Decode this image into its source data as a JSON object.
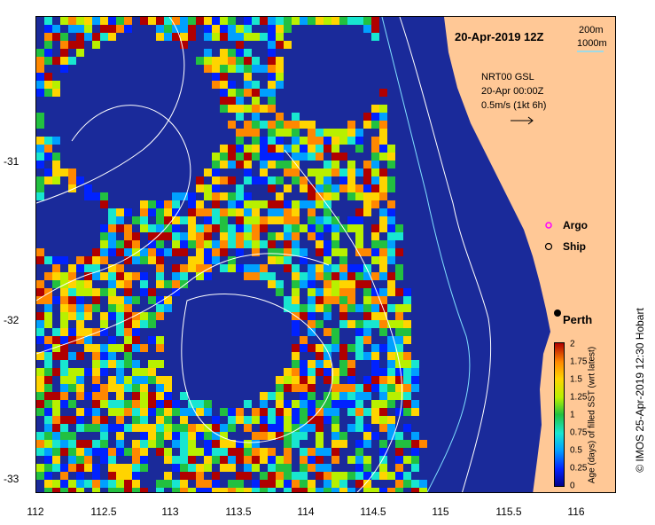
{
  "map": {
    "date_label": "20-Apr-2019 12Z",
    "contour_legend": {
      "c200": "200m",
      "c1000": "1000m"
    },
    "current_info": {
      "line1": "NRT00 GSL",
      "line2": "20-Apr 00:00Z",
      "line3": "0.5m/s (1kt 6h)"
    },
    "markers": {
      "argo": "Argo",
      "ship": "Ship",
      "city": "Perth"
    },
    "x_ticks": [
      "112",
      "112.5",
      "113",
      "113.5",
      "114",
      "114.5",
      "115",
      "115.5",
      "116"
    ],
    "y_ticks": [
      "-31",
      "-32",
      "-33"
    ],
    "colorbar": {
      "title": "Age (days) of filled SST (wrt latest)",
      "ticks": [
        "0",
        "0.25",
        "0.5",
        "0.75",
        "1",
        "1.25",
        "1.5",
        "1.75",
        "2"
      ]
    },
    "credit": "© IMOS 25-Apr-2019 12:30 Hobart",
    "colors": {
      "ocean": "#1a2a9a",
      "land": "#ffc896",
      "contour_200": "#80e0ff",
      "contour_1000": "#ffffff",
      "argo": "#ff00ff",
      "city": "#000000"
    },
    "icons": {
      "argo": "argo-float-icon",
      "ship": "ship-icon",
      "city": "city-dot-icon"
    }
  }
}
